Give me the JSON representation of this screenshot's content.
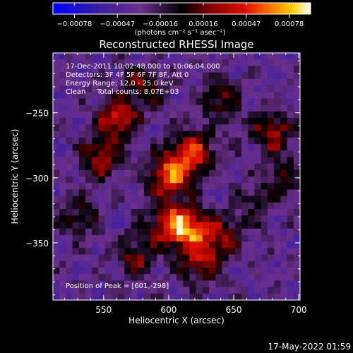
{
  "chart_data": {
    "type": "heatmap",
    "title": "Reconstructed RHESSI Image",
    "xlabel": "Heliocentric X (arcsec)",
    "ylabel": "Heliocentric Y (arcsec)",
    "xlim": [
      511,
      701
    ],
    "ylim": [
      -394,
      -204
    ],
    "x_ticks": [
      550,
      600,
      650,
      700
    ],
    "y_ticks": [
      -250,
      -300,
      -350
    ],
    "colorbar": {
      "units": "(photons cm⁻² s⁻¹ asec⁻²)",
      "ticks": [
        "-0.00078",
        "-0.00047",
        "-0.00016",
        "0.00016",
        "0.00047",
        "0.00078"
      ],
      "range": [
        -0.00078,
        0.00078
      ]
    },
    "info_lines": [
      "17-Dec-2011 10:02:48.000 to 10:06:04.000",
      "Detectors: 3F 4F 5F 6F 7F 8F, Att 0",
      "Energy Range: 12.0 - 25.0 keV",
      "Clean     Total counts: 8.07E+03"
    ],
    "peak_text": "Position of Peak = [601,-298]",
    "peak": {
      "x": 601,
      "y": -298
    },
    "sources": [
      {
        "x": 601,
        "y": -298,
        "amp": 0.00078
      },
      {
        "x": 618,
        "y": -280,
        "amp": 0.0007
      },
      {
        "x": 560,
        "y": -255,
        "amp": 0.0006
      },
      {
        "x": 548,
        "y": -285,
        "amp": 0.00052
      },
      {
        "x": 580,
        "y": -230,
        "amp": 0.0004
      },
      {
        "x": 640,
        "y": -240,
        "amp": 0.00036
      },
      {
        "x": 680,
        "y": -265,
        "amp": 0.00048
      },
      {
        "x": 688,
        "y": -300,
        "amp": 0.0003
      },
      {
        "x": 600,
        "y": -335,
        "amp": 0.00055
      },
      {
        "x": 615,
        "y": -340,
        "amp": 0.00068
      },
      {
        "x": 640,
        "y": -345,
        "amp": 0.00045
      },
      {
        "x": 575,
        "y": -360,
        "amp": 0.0004
      },
      {
        "x": 625,
        "y": -365,
        "amp": 0.0005
      },
      {
        "x": 530,
        "y": -330,
        "amp": 0.0003
      },
      {
        "x": 665,
        "y": -320,
        "amp": 0.00025
      }
    ]
  },
  "timestamp": "17-May-2022 01:59"
}
